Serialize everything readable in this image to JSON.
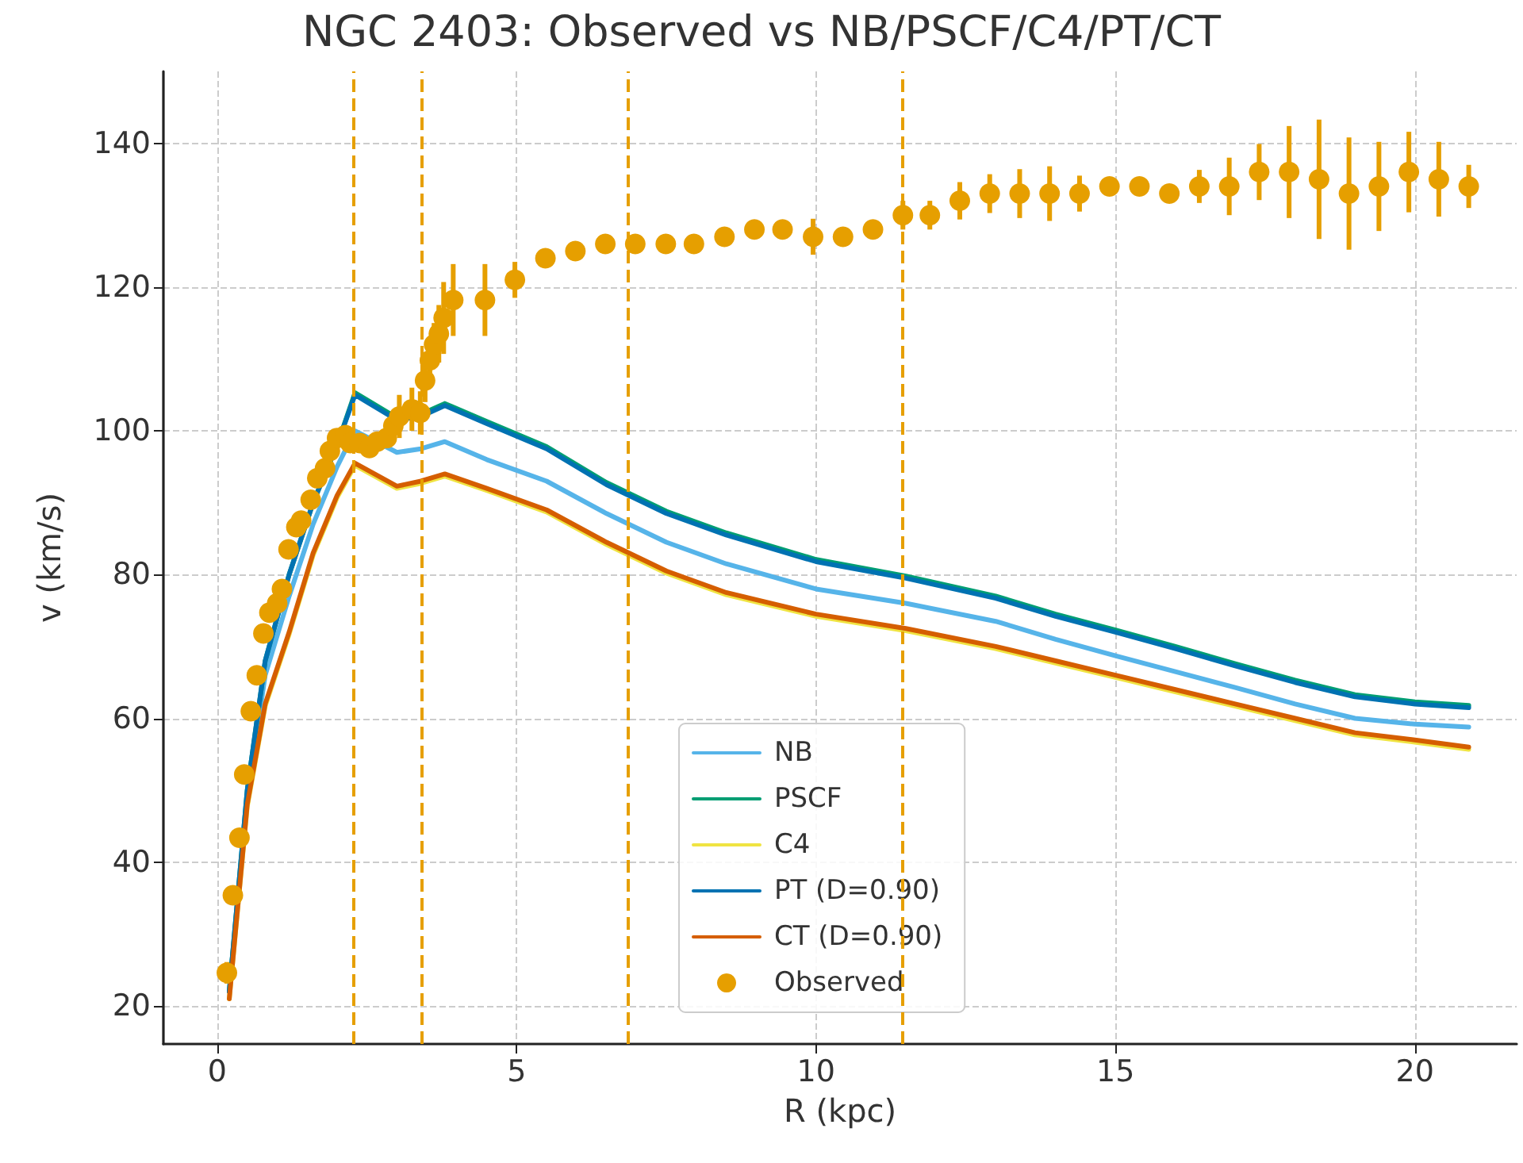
{
  "chart_data": {
    "type": "line",
    "title": "NGC 2403: Observed vs NB/PSCF/C4/PT/CT",
    "xlabel": "R (kpc)",
    "ylabel": "v (km/s)",
    "xlim": [
      -0.9,
      21.7
    ],
    "xticks": [
      0,
      5,
      10,
      15,
      20
    ],
    "ylim": [
      14.7,
      150
    ],
    "yticks": [
      20,
      40,
      60,
      80,
      100,
      120,
      140
    ],
    "grid": true,
    "legend": "bottom",
    "x": [
      0.2,
      0.5,
      0.8,
      1.2,
      1.6,
      2.0,
      2.3,
      3.0,
      3.4,
      3.8,
      4.5,
      5.5,
      6.5,
      7.5,
      8.5,
      10,
      11.5,
      13,
      14,
      15,
      16,
      17,
      18,
      19,
      20,
      20.9
    ],
    "series": [
      {
        "name": "NB",
        "color": "#56b4e9",
        "marker": "none",
        "values": [
          22,
          49,
          66,
          77,
          87,
          95,
          100,
          97,
          97.5,
          98.5,
          96,
          93,
          88.5,
          84.5,
          81.5,
          78,
          76,
          73.5,
          71,
          68.7,
          66.5,
          64.3,
          62,
          60,
          59.2,
          58.8
        ]
      },
      {
        "name": "PSCF",
        "color": "#009e73",
        "marker": "none",
        "values": [
          22,
          50,
          68,
          80,
          90,
          98,
          105.3,
          101.8,
          102.3,
          103.8,
          101.3,
          97.8,
          92.8,
          88.8,
          85.8,
          82.1,
          79.8,
          77,
          74.5,
          72.3,
          70,
          67.6,
          65.3,
          63.3,
          62.3,
          61.8
        ]
      },
      {
        "name": "C4",
        "color": "#f0e442",
        "marker": "none",
        "values": [
          21,
          47.7,
          61.7,
          71.7,
          82.7,
          90.7,
          95.2,
          92,
          92.7,
          93.7,
          91.7,
          88.7,
          84.2,
          80.2,
          77.2,
          74.2,
          72.2,
          69.7,
          67.7,
          65.7,
          63.7,
          61.7,
          59.7,
          57.7,
          56.7,
          55.7
        ]
      },
      {
        "name": "PT (D=0.90)",
        "color": "#0072b2",
        "marker": "none",
        "values": [
          22,
          50,
          68,
          80,
          90,
          98,
          105,
          101.5,
          102,
          103.5,
          101,
          97.5,
          92.5,
          88.5,
          85.5,
          81.8,
          79.5,
          76.7,
          74.2,
          72,
          69.7,
          67.3,
          65,
          63,
          62,
          61.5
        ]
      },
      {
        "name": "CT (D=0.90)",
        "color": "#d55e00",
        "marker": "none",
        "values": [
          21,
          48,
          62,
          72,
          83,
          91,
          95.5,
          92.3,
          93,
          94,
          92,
          89,
          84.5,
          80.5,
          77.5,
          74.5,
          72.5,
          70,
          68,
          66,
          64,
          62,
          60,
          58,
          57,
          56
        ]
      },
      {
        "name": "Observed",
        "type": "scatter",
        "color": "#e69f00",
        "marker": "circle",
        "x": [
          0.16,
          0.26,
          0.37,
          0.45,
          0.56,
          0.66,
          0.77,
          0.87,
          1.0,
          1.08,
          1.19,
          1.32,
          1.4,
          1.56,
          1.67,
          1.8,
          1.88,
          2.0,
          2.14,
          2.22,
          2.38,
          2.54,
          2.67,
          2.83,
          2.94,
          3.04,
          3.25,
          3.39,
          3.47,
          3.55,
          3.62,
          3.7,
          3.78,
          3.94,
          4.47,
          4.97,
          5.48,
          5.98,
          6.48,
          6.98,
          7.49,
          7.96,
          8.47,
          8.97,
          9.44,
          9.95,
          10.45,
          10.95,
          11.45,
          11.9,
          12.4,
          12.9,
          13.4,
          13.9,
          14.4,
          14.9,
          15.4,
          15.9,
          16.4,
          16.9,
          17.4,
          17.9,
          18.4,
          18.9,
          19.4,
          19.9,
          20.4,
          20.9
        ],
        "values": [
          24.6,
          35.4,
          43.4,
          52.2,
          61,
          66,
          71.8,
          74.7,
          76,
          78,
          83.5,
          86.6,
          87.5,
          90.4,
          93.4,
          94.8,
          97.2,
          99,
          99.4,
          98.3,
          98.3,
          97.6,
          98.5,
          99,
          100.7,
          102,
          103,
          102.5,
          107,
          109.8,
          112,
          113.5,
          115.7,
          118.2,
          118.2,
          121,
          124,
          125,
          126,
          126,
          126,
          126,
          127,
          128,
          128,
          127,
          127,
          128,
          130,
          130,
          132,
          133,
          133,
          133,
          133,
          134,
          134,
          133,
          134,
          134,
          136,
          136,
          135,
          133,
          134,
          136,
          135,
          134
        ],
        "errors": [
          1.5,
          1,
          1,
          1,
          1,
          1,
          1,
          1,
          1,
          1,
          1,
          1,
          1,
          1,
          1,
          1,
          1,
          1,
          1,
          1,
          1,
          1,
          1,
          1,
          2,
          3,
          3,
          3,
          3,
          3,
          3,
          4,
          5,
          5,
          5,
          2.5,
          1,
          1,
          1,
          1,
          1,
          1,
          1,
          1,
          1,
          2.5,
          1,
          1,
          2,
          2,
          2.6,
          2.7,
          3.4,
          3.8,
          2.5,
          1,
          1,
          1,
          2.3,
          4,
          3.9,
          6.4,
          8.3,
          7.8,
          6.2,
          5.6,
          5.2,
          3
        ]
      }
    ],
    "ref_lines": [
      {
        "axis": "x",
        "value": 2.28,
        "color": "#e69f00",
        "line_style": "dashed"
      },
      {
        "axis": "x",
        "value": 3.41,
        "color": "#e69f00",
        "line_style": "dashed"
      },
      {
        "axis": "x",
        "value": 6.85,
        "color": "#e69f00",
        "line_style": "dashed"
      },
      {
        "axis": "x",
        "value": 11.43,
        "color": "#e69f00",
        "line_style": "dashed"
      }
    ]
  }
}
